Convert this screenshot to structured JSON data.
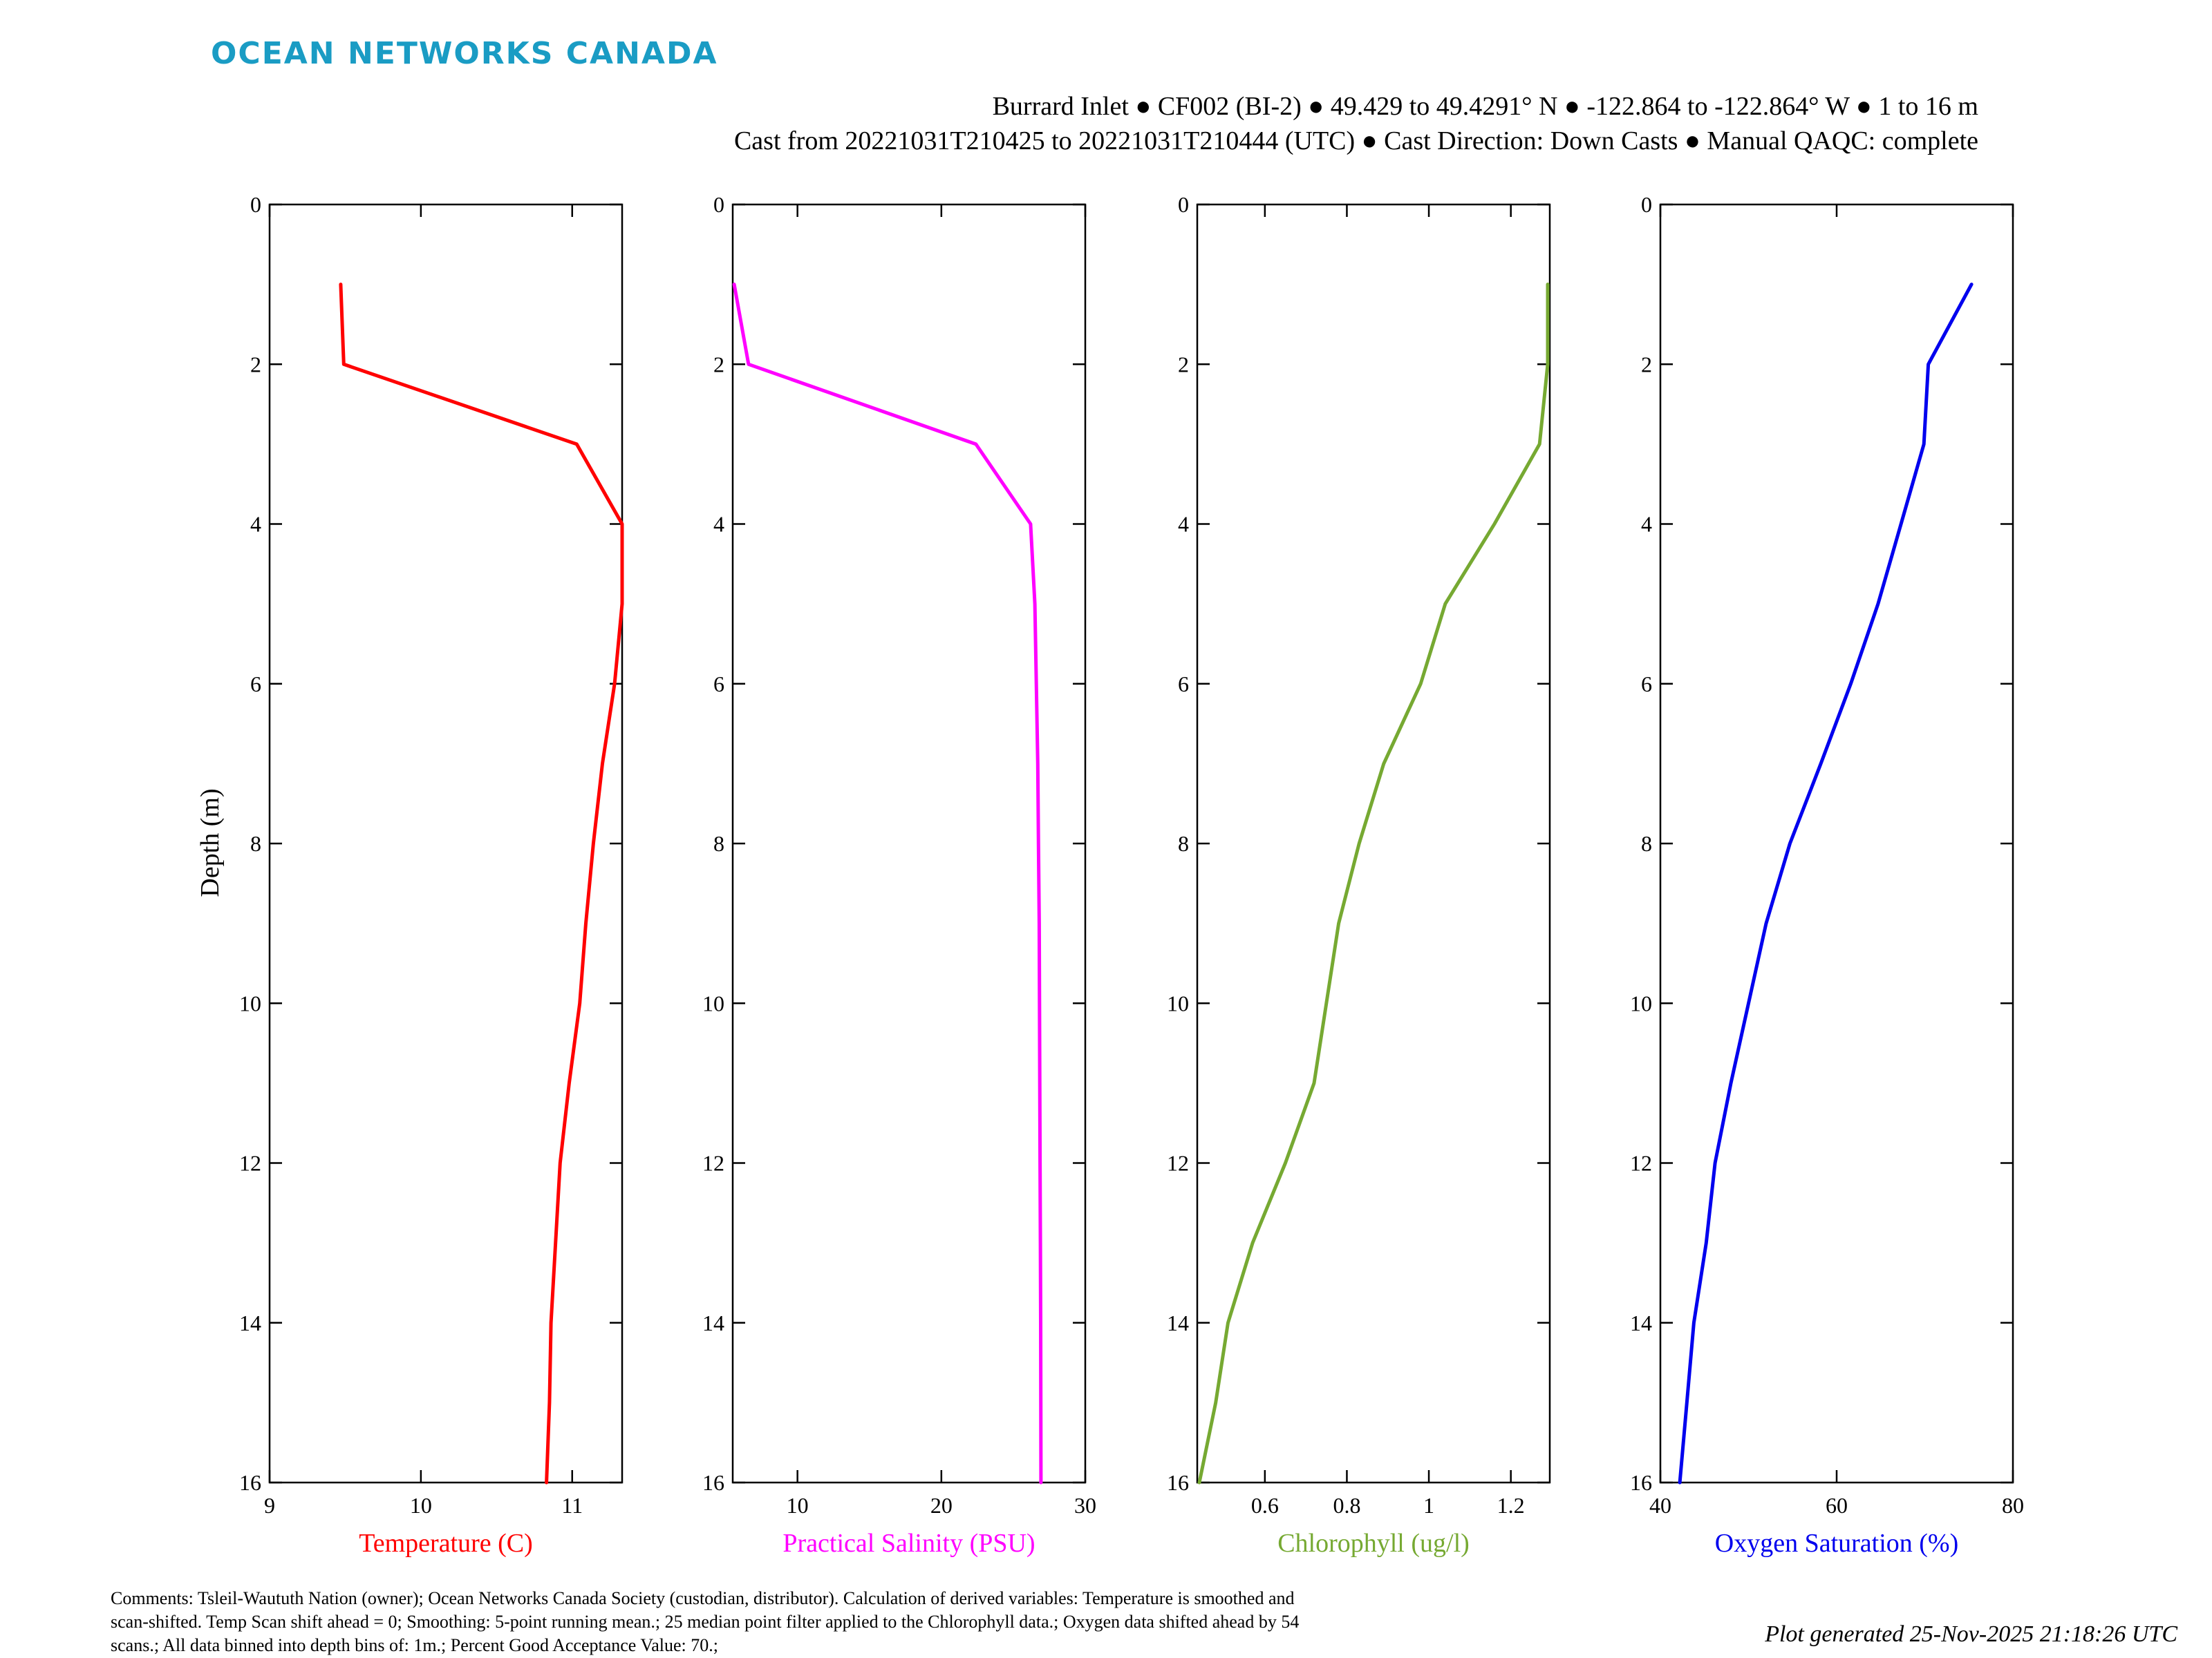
{
  "brand": {
    "name": "OCEAN NETWORKS CANADA",
    "color": "#1a9cc4"
  },
  "header": {
    "line1": "Burrard Inlet ● CF002 (BI-2) ● 49.429 to 49.4291° N ● -122.864 to -122.864° W ● 1 to 16 m",
    "line2": "Cast from 20221031T210425 to 20221031T210444 (UTC) ● Cast Direction: Down Casts ● Manual QAQC: complete"
  },
  "chart_data": [
    {
      "type": "line",
      "ylabel": "Depth (m)",
      "xlabel": "Temperature (C)",
      "color": "#ff0000",
      "xlim": [
        9,
        11.33
      ],
      "ylim": [
        0,
        16
      ],
      "y_inverted": true,
      "xticks": [
        9,
        10,
        11
      ],
      "yticks": [
        0,
        2,
        4,
        6,
        8,
        10,
        12,
        14,
        16
      ],
      "x": [
        9.47,
        9.49,
        11.03,
        11.33,
        11.33,
        11.28,
        11.2,
        11.14,
        11.09,
        11.05,
        10.98,
        10.92,
        10.89,
        10.86,
        10.85,
        10.83
      ],
      "y": [
        1,
        2,
        3,
        4,
        5,
        6,
        7,
        8,
        9,
        10,
        11,
        12,
        13,
        14,
        15,
        16
      ]
    },
    {
      "type": "line",
      "ylabel": "",
      "xlabel": "Practical Salinity (PSU)",
      "color": "#ff00ff",
      "xlim": [
        5.5,
        30
      ],
      "ylim": [
        0,
        16
      ],
      "y_inverted": true,
      "xticks": [
        10,
        20,
        30
      ],
      "yticks": [
        0,
        2,
        4,
        6,
        8,
        10,
        12,
        14,
        16
      ],
      "x": [
        5.6,
        6.6,
        22.4,
        26.2,
        26.5,
        26.6,
        26.7,
        26.75,
        26.8,
        26.82,
        26.84,
        26.86,
        26.88,
        26.9,
        26.91,
        26.92
      ],
      "y": [
        1,
        2,
        3,
        4,
        5,
        6,
        7,
        8,
        9,
        10,
        11,
        12,
        13,
        14,
        15,
        16
      ]
    },
    {
      "type": "line",
      "ylabel": "",
      "xlabel": "Chlorophyll (ug/l)",
      "color": "#76a932",
      "xlim": [
        0.435,
        1.295
      ],
      "ylim": [
        0,
        16
      ],
      "y_inverted": true,
      "xticks": [
        0.6,
        0.8,
        1,
        1.2
      ],
      "yticks": [
        0,
        2,
        4,
        6,
        8,
        10,
        12,
        14,
        16
      ],
      "x": [
        1.29,
        1.29,
        1.27,
        1.16,
        1.04,
        0.98,
        0.89,
        0.83,
        0.78,
        0.75,
        0.72,
        0.65,
        0.57,
        0.51,
        0.48,
        0.44
      ],
      "y": [
        1,
        2,
        3,
        4,
        5,
        6,
        7,
        8,
        9,
        10,
        11,
        12,
        13,
        14,
        15,
        16
      ]
    },
    {
      "type": "line",
      "ylabel": "",
      "xlabel": "Oxygen Saturation (%)",
      "color": "#0000ee",
      "xlim": [
        40,
        80
      ],
      "ylim": [
        0,
        16
      ],
      "y_inverted": true,
      "xticks": [
        40,
        60,
        80
      ],
      "yticks": [
        0,
        2,
        4,
        6,
        8,
        10,
        12,
        14,
        16
      ],
      "x": [
        75.3,
        70.4,
        69.9,
        67.3,
        64.7,
        61.6,
        58.2,
        54.7,
        52.0,
        50.0,
        48.0,
        46.2,
        45.2,
        43.8,
        43.0,
        42.2
      ],
      "y": [
        1,
        2,
        3,
        4,
        5,
        6,
        7,
        8,
        9,
        10,
        11,
        12,
        13,
        14,
        15,
        16
      ]
    }
  ],
  "footer": {
    "comments_lines": [
      "Comments: Tsleil-Waututh Nation (owner); Ocean Networks Canada Society (custodian, distributor). Calculation of derived variables: Temperature is smoothed and",
      "scan-shifted. Temp Scan shift ahead = 0; Smoothing: 5-point running mean.; 25 median point filter applied to the Chlorophyll data.; Oxygen data shifted ahead by 54",
      "scans.; All data binned into depth bins of: 1m.; Percent Good Acceptance Value: 70.;"
    ],
    "generated": "Plot generated 25-Nov-2025 21:18:26 UTC"
  }
}
